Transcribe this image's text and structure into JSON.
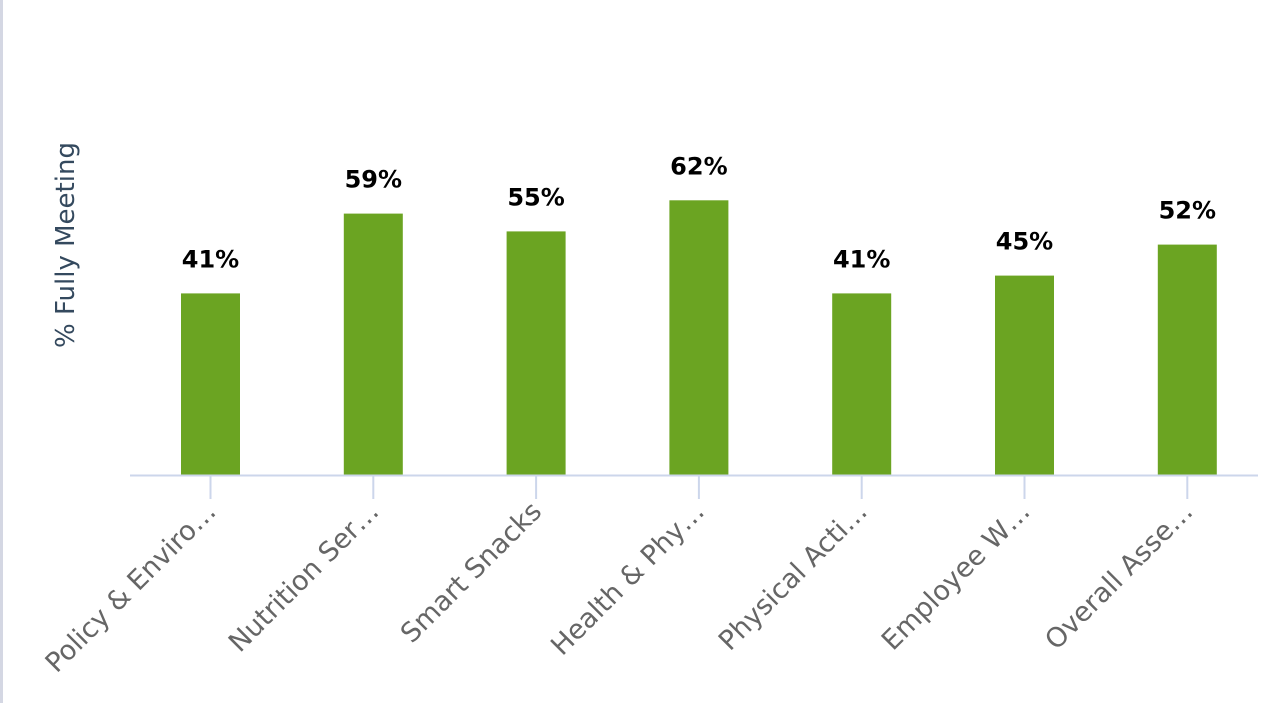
{
  "chart_data": {
    "type": "bar",
    "categories": [
      "Policy & Enviro…",
      "Nutrition Ser…",
      "Smart Snacks",
      "Health & Phy…",
      "Physical Acti…",
      "Employee W…",
      "Overall Asse…"
    ],
    "values": [
      41,
      59,
      55,
      62,
      41,
      45,
      52
    ],
    "value_labels": [
      "41%",
      "59%",
      "55%",
      "62%",
      "41%",
      "45%",
      "52%"
    ],
    "title": "",
    "xlabel": "",
    "ylabel": "% Fully Meeting",
    "ylim": [
      0,
      100
    ],
    "grid": false,
    "legend": "none",
    "colors": {
      "bar": "#6ba422",
      "axis": "#ccd6eb",
      "ylabel": "#34495e",
      "tick_label": "#666666",
      "value_label": "#000000"
    }
  }
}
